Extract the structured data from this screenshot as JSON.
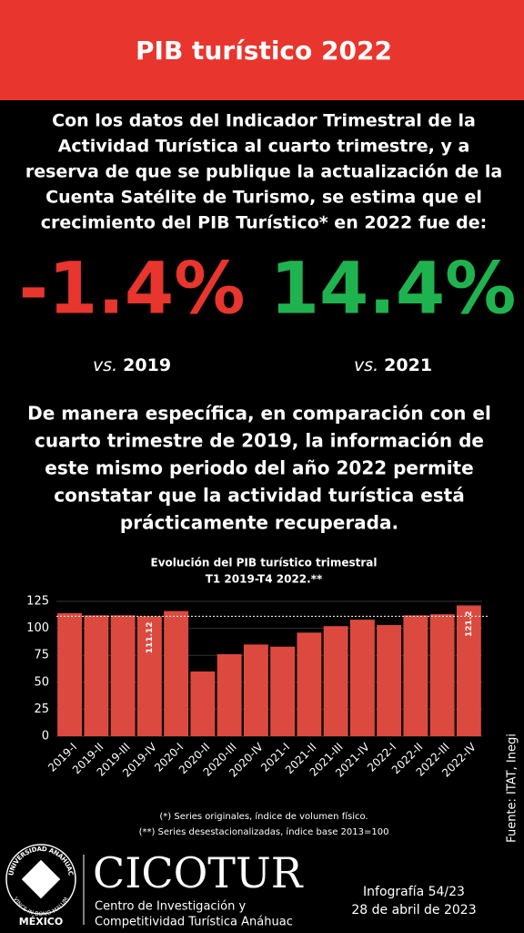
{
  "header": {
    "title": "PIB turístico 2022"
  },
  "intro": [
    "Con los datos del Indicador Trimestral de la",
    "Actividad Turística al cuarto trimestre, y a",
    "reserva de que se publique la actualización de la",
    "Cuenta Satélite de Turismo, se estima que el",
    "crecimiento del PIB Turístico* en 2022 fue de:"
  ],
  "stats": [
    {
      "value": "-1.4%",
      "prefix": "vs.",
      "label": "2019"
    },
    {
      "value": "14.4%",
      "prefix": "vs.",
      "label": "2021"
    }
  ],
  "detail": [
    "De manera específica, en comparación con el",
    "cuarto trimestre de 2019, la información de",
    "este mismo periodo del año 2022 permite",
    "constatar que la actividad turística está",
    "prácticamente recuperada."
  ],
  "chart_data": {
    "type": "bar",
    "title": [
      "Evolución del PIB turístico trimestral",
      "T1 2019-T4 2022.**"
    ],
    "categories": [
      "2019-I",
      "2019-II",
      "2019-III",
      "2019-IV",
      "2020-I",
      "2020-II",
      "2020-III",
      "2020-IV",
      "2021-I",
      "2021-II",
      "2021-III",
      "2021-IV",
      "2022-I",
      "2022-II",
      "2022-III",
      "2022-IV"
    ],
    "values": [
      114,
      112,
      112,
      111.12,
      116,
      60,
      76,
      85,
      83,
      96,
      102,
      108,
      103,
      112,
      113,
      121.2
    ],
    "value_labels": [
      null,
      null,
      null,
      "111.12",
      null,
      null,
      null,
      null,
      null,
      null,
      null,
      null,
      null,
      null,
      null,
      "121.2"
    ],
    "color": "#dc4a3f",
    "ylim": [
      0,
      125
    ],
    "yticks": [
      0,
      25,
      50,
      75,
      100,
      125
    ],
    "grid": true
  },
  "footnotes": [
    "(*) Series originales, índice de volumen físico.",
    "(**) Series desestacionalizadas, índice base 2013=100"
  ],
  "source": "Fuente: ITAT, Inegi",
  "footer": {
    "seal_top": "UNIVERSIDAD ANÁHUAC",
    "seal_bottom": "VINCE IN BONO MALUM",
    "country": "MÉXICO",
    "brand": "CICOTUR",
    "brand_sub": [
      "Centro de Investigación y",
      "Competitividad Turística Anáhuac"
    ],
    "issue": "Infografía 54/23",
    "date": "28 de abril de 2023"
  }
}
